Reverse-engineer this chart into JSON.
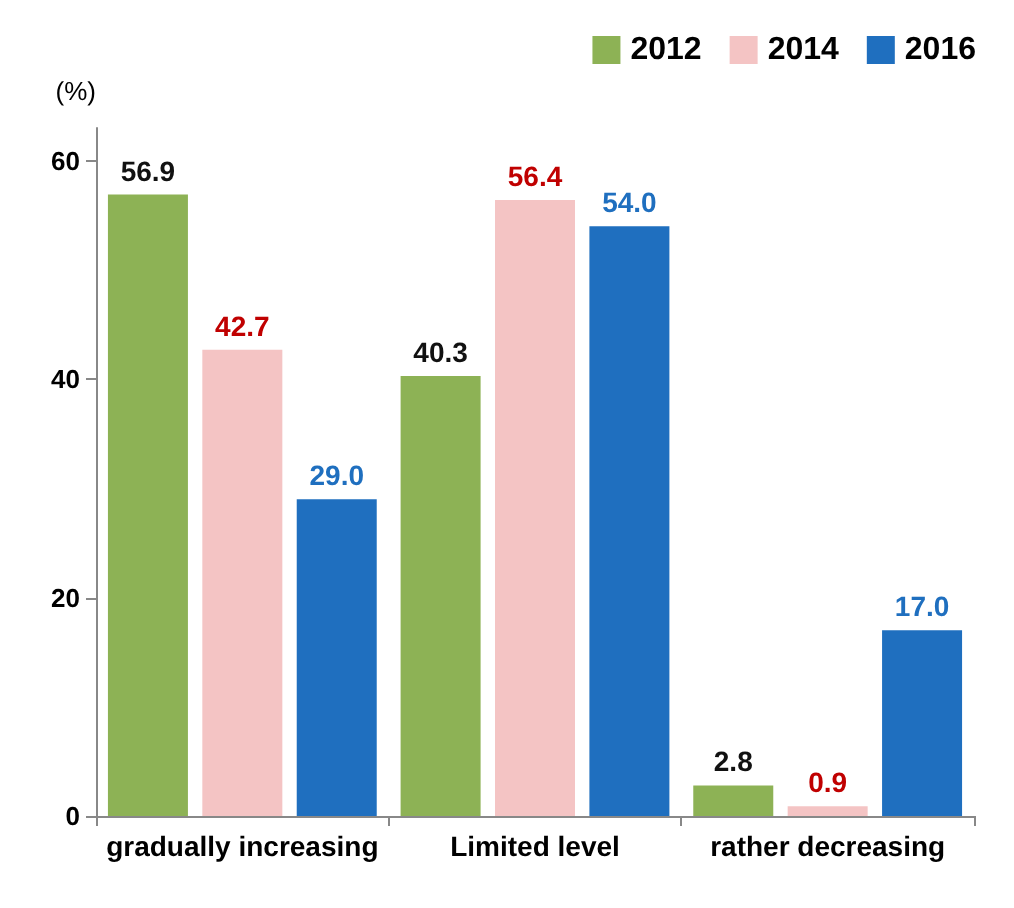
{
  "chart_data": {
    "type": "bar",
    "ylabel": "(%)",
    "categories": [
      "gradually increasing",
      "Limited level",
      "rather decreasing"
    ],
    "series": [
      {
        "name": "2012",
        "color": "#8db255",
        "values": [
          56.9,
          40.3,
          2.8
        ],
        "value_labels": [
          "56.9",
          "40.3",
          "2.8"
        ]
      },
      {
        "name": "2014",
        "color": "#f4c4c4",
        "values": [
          42.7,
          56.4,
          0.9
        ],
        "value_labels": [
          "42.7",
          "56.4",
          "0.9"
        ]
      },
      {
        "name": "2016",
        "color": "#1f6fbf",
        "values": [
          29.0,
          54.0,
          17.0
        ],
        "value_labels": [
          "29.0",
          "54.0",
          "17.0"
        ]
      }
    ],
    "ylim": [
      0,
      63
    ],
    "yticks": [
      0,
      20,
      40,
      60
    ],
    "legend": "top right",
    "grid": false
  }
}
